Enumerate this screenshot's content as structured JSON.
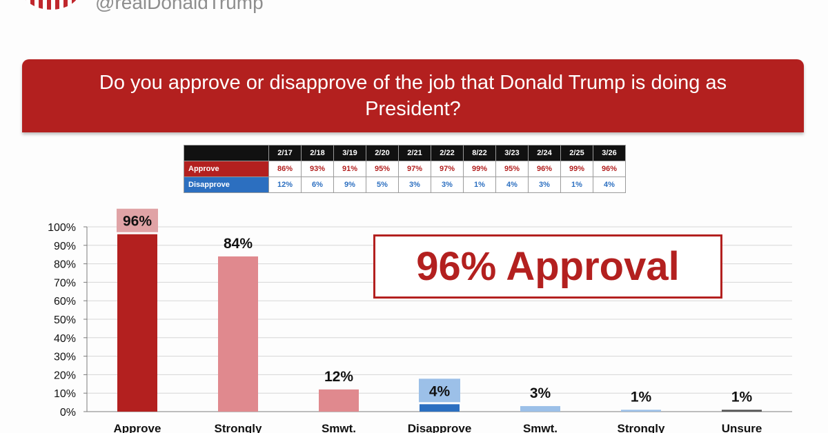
{
  "header": {
    "handle": "@realDonaldTrump"
  },
  "banner": {
    "question": "Do you approve or disapprove of the job that Donald Trump is doing as President?"
  },
  "poll_table": {
    "dates": [
      "2/17",
      "2/18",
      "3/19",
      "2/20",
      "2/21",
      "2/22",
      "8/22",
      "3/23",
      "2/24",
      "2/25",
      "3/26"
    ],
    "approve": {
      "label": "Approve",
      "values": [
        "86%",
        "93%",
        "91%",
        "95%",
        "97%",
        "97%",
        "99%",
        "95%",
        "96%",
        "99%",
        "96%"
      ]
    },
    "disapprove": {
      "label": "Disapprove",
      "values": [
        "12%",
        "6%",
        "9%",
        "5%",
        "3%",
        "3%",
        "1%",
        "4%",
        "3%",
        "1%",
        "4%"
      ]
    }
  },
  "stamp": {
    "text": "96% Approval"
  },
  "colors": {
    "approve_dark": "#b3201f",
    "approve_light": "#e0898e",
    "disapprove_dark": "#2c6fc0",
    "disapprove_light": "#9cc0e8",
    "neutral": "#555555"
  },
  "chart_data": {
    "type": "bar",
    "title": "",
    "xlabel": "",
    "ylabel": "",
    "ylim": [
      0,
      100
    ],
    "yticks": [
      "0%",
      "10%",
      "20%",
      "30%",
      "40%",
      "50%",
      "60%",
      "70%",
      "80%",
      "90%",
      "100%"
    ],
    "grid": true,
    "categories": [
      "Approve",
      "Strongly",
      "Smwt.",
      "Disapprove",
      "Smwt.",
      "Strongly",
      "Unsure"
    ],
    "values": [
      96,
      84,
      12,
      4,
      3,
      1,
      1
    ],
    "labels": [
      "96%",
      "84%",
      "12%",
      "4%",
      "3%",
      "1%",
      "1%"
    ],
    "colors": [
      "#b3201f",
      "#e0898e",
      "#e0898e",
      "#2c6fc0",
      "#9cc0e8",
      "#9cc0e8",
      "#555555"
    ],
    "label_highlight": [
      "#e0a3a6",
      "",
      "",
      "#9cc0e8",
      "",
      "",
      ""
    ]
  }
}
